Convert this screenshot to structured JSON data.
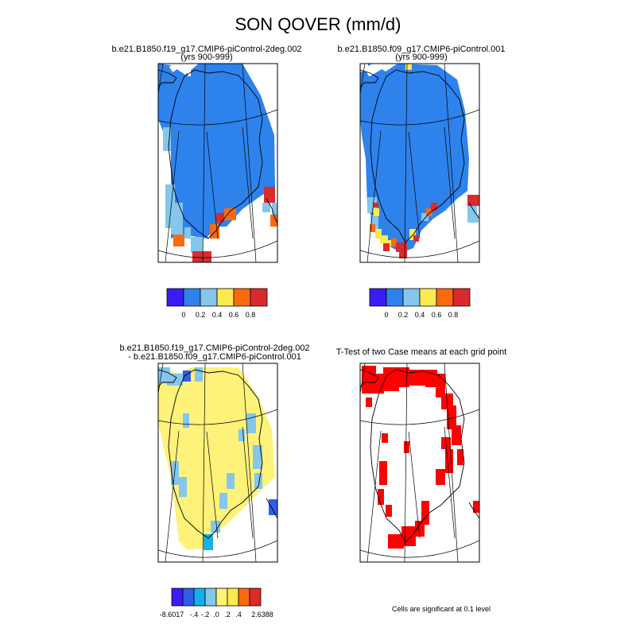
{
  "title": "SON QOVER (mm/d)",
  "colors": {
    "purple": "#3a1cf5",
    "blue": "#2e82ec",
    "sky": "#84c6ec",
    "yellow": "#fdea4f",
    "orange": "#f96a10",
    "red": "#d92b2b",
    "diff_blue": "#2e5ee8",
    "diff_cyan": "#14b0ea",
    "diff_lightyellow": "#fef27a",
    "ttest_red": "#ff0000"
  },
  "chart_data": [
    {
      "type": "heatmap",
      "title": "b.e21.B1850.f19_g17.CMIP6-piControl-2deg.002",
      "subtitle": "(yrs 900-999)",
      "colorbar_ticks": [
        "0",
        "0.2",
        "0.4",
        "0.6",
        "0.8"
      ]
    },
    {
      "type": "heatmap",
      "title": "b.e21.B1850.f09_g17.CMIP6-piControl.001",
      "subtitle": "(yrs 900-999)",
      "colorbar_ticks": [
        "0",
        "0.2",
        "0.4",
        "0.6",
        "0.8"
      ]
    },
    {
      "type": "heatmap",
      "title": "b.e21.B1850.f19_g17.CMIP6-piControl-2deg.002",
      "subtitle": "- b.e21.B1850.f09_g17.CMIP6-piControl.001",
      "colorbar_ticks": [
        "-8.6017",
        "-.4",
        "-.2",
        ".0",
        ".2",
        ".4",
        "2.6388"
      ]
    },
    {
      "type": "heatmap",
      "title": "T-Test of two Case means at each grid point",
      "note": "Cells are significant at 0.1 level"
    }
  ]
}
